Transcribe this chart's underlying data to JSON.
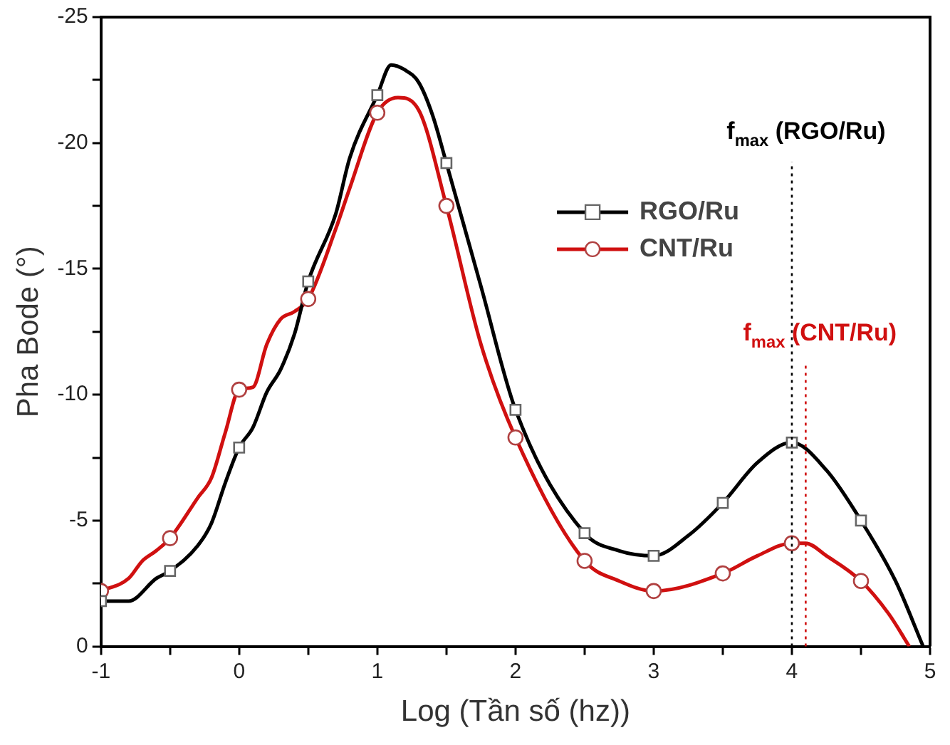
{
  "chart_data": {
    "type": "line",
    "xlabel": "Log (Tần số (hz))",
    "ylabel": "Pha Bode (°)",
    "xlim": [
      -1,
      5
    ],
    "xticks": [
      -1,
      {
        "value": -0.5,
        "label": null
      },
      0,
      {
        "value": 0.5,
        "label": null
      },
      1,
      {
        "value": 1.5,
        "label": null
      },
      2,
      {
        "value": 2.5,
        "label": null
      },
      3,
      {
        "value": 3.5,
        "label": null
      },
      4,
      {
        "value": 4.5,
        "label": null
      },
      5
    ],
    "ylim": [
      0,
      -25
    ],
    "yticks": [
      0,
      {
        "value": -2.5,
        "label": null
      },
      -5,
      {
        "value": -7.5,
        "label": null
      },
      -10,
      {
        "value": -12.5,
        "label": null
      },
      -15,
      {
        "value": -17.5,
        "label": null
      },
      -20,
      {
        "value": -22.5,
        "label": null
      },
      -25
    ],
    "grid": false,
    "legend": "top right",
    "line_style": "solid",
    "series": [
      {
        "type": "scatter",
        "color": "#666666",
        "marker": "square",
        "x": [
          -1,
          -0.5,
          0,
          0.5,
          1,
          1.5,
          2,
          2.5,
          3,
          3.5,
          4,
          4.5
        ],
        "values": [
          -1.8,
          -3.0,
          -7.9,
          -14.5,
          -21.9,
          -19.2,
          -9.4,
          -4.5,
          -3.6,
          -5.7,
          -8.1,
          -5.0
        ]
      },
      {
        "type": "scatter",
        "color": "#b04040",
        "marker": "circle",
        "x": [
          -1,
          -0.5,
          0,
          0.5,
          1,
          1.5,
          2,
          2.5,
          3,
          3.5,
          4,
          4.5
        ],
        "values": [
          -2.2,
          -4.3,
          -10.2,
          -13.8,
          -21.2,
          -17.5,
          -8.3,
          -3.4,
          -2.2,
          -2.9,
          -4.1,
          -2.6
        ]
      },
      {
        "name": "RGO/Ru",
        "color": "#000000",
        "marker": "none",
        "x": [
          -1,
          -0.8,
          -0.6,
          -0.5,
          -0.3,
          -0.2,
          -0.1,
          0,
          0.1,
          0.2,
          0.3,
          0.4,
          0.5,
          0.7,
          0.8,
          1,
          1.1,
          1.2,
          1.3,
          1.4,
          1.5,
          1.75,
          2,
          2.5,
          2.75,
          3,
          3.25,
          3.5,
          3.75,
          4,
          4.25,
          4.5,
          4.75,
          4.95
        ],
        "values": [
          -1.8,
          -1.8,
          -2.7,
          -3.0,
          -4.0,
          -4.9,
          -6.5,
          -7.9,
          -8.7,
          -10.1,
          -11.0,
          -12.4,
          -14.5,
          -17.2,
          -19.4,
          -21.9,
          -23.1,
          -22.9,
          -22.4,
          -21.1,
          -19.2,
          -14.3,
          -9.4,
          -4.5,
          -3.8,
          -3.6,
          -4.4,
          -5.7,
          -7.3,
          -8.1,
          -7.0,
          -5.0,
          -2.6,
          0
        ]
      },
      {
        "name": "CNT/Ru",
        "color": "#d01010",
        "marker": "none",
        "x": [
          -1,
          -0.8,
          -0.7,
          -0.6,
          -0.5,
          -0.3,
          -0.2,
          -0.1,
          0,
          0.1,
          0.2,
          0.3,
          0.4,
          0.5,
          0.7,
          0.8,
          1,
          1.15,
          1.3,
          1.5,
          1.75,
          2,
          2.5,
          2.75,
          3,
          3.5,
          3.75,
          4,
          4.1,
          4.25,
          4.5,
          4.7,
          4.85
        ],
        "values": [
          -2.2,
          -2.7,
          -3.4,
          -3.8,
          -4.3,
          -5.9,
          -6.7,
          -8.5,
          -10.2,
          -10.3,
          -12.0,
          -13.0,
          -13.3,
          -13.8,
          -16.6,
          -18.2,
          -21.2,
          -21.8,
          -21.3,
          -17.5,
          -12.0,
          -8.3,
          -3.4,
          -2.6,
          -2.2,
          -2.9,
          -3.6,
          -4.1,
          -4.1,
          -3.6,
          -2.6,
          -1.3,
          0
        ]
      }
    ],
    "ref_lines": [
      {
        "axis": "x",
        "value": 4,
        "label": "f$_{max}$ (RGO/Ru)",
        "color": "#000000",
        "line_style": "dotted"
      },
      {
        "axis": "x",
        "value": 4.1,
        "label": "f$_{max}$ (CNT/Ru)",
        "color": "#d01010",
        "line_style": "dotted"
      }
    ]
  }
}
